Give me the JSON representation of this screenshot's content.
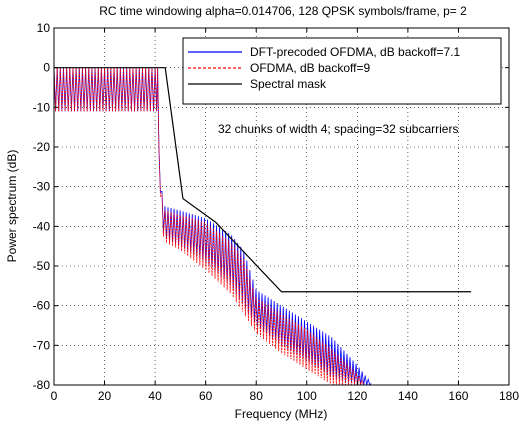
{
  "chart_data": {
    "type": "line",
    "title": "RC time windowing alpha=0.014706,  128 QPSK symbols/frame,  p= 2",
    "xlabel": "Frequency (MHz)",
    "ylabel": "Power spectrum (dB)",
    "xlim": [
      0,
      180
    ],
    "ylim": [
      -80,
      10
    ],
    "xticks": [
      0,
      20,
      40,
      60,
      80,
      100,
      120,
      140,
      160,
      180
    ],
    "yticks": [
      10,
      0,
      -10,
      -20,
      -30,
      -40,
      -50,
      -60,
      -70,
      -80
    ],
    "grid": true,
    "legend_position": "top-right",
    "annotation": "32 chunks of width 4; spacing=32 subcarriers",
    "series": [
      {
        "name": "DFT-precoded OFDMA, dB backoff=7.1",
        "color": "#0000ff",
        "style": "solid",
        "inband": {
          "x_range": [
            0,
            41
          ],
          "top": 0,
          "bottom": -11,
          "period": 1.25
        },
        "envelope": {
          "x": [
            41.5,
            43,
            44,
            50,
            60,
            70,
            75,
            80,
            90,
            100,
            110,
            120,
            126
          ],
          "top": [
            -20,
            -34,
            -35,
            -36,
            -38,
            -42,
            -46,
            -56,
            -60,
            -64,
            -68,
            -75,
            -80
          ],
          "bottom": [
            -25,
            -41,
            -43,
            -45,
            -49,
            -55,
            -60,
            -65,
            -70,
            -74,
            -78,
            -80,
            -80
          ]
        }
      },
      {
        "name": "OFDMA, dB backoff=9",
        "color": "#ff0000",
        "style": "dashed",
        "inband": {
          "x_range": [
            0,
            41
          ],
          "top": 0,
          "bottom": -11,
          "period": 1.25
        },
        "envelope": {
          "x": [
            41.5,
            43,
            44,
            50,
            60,
            70,
            75,
            80,
            90,
            100,
            110,
            120,
            123
          ],
          "top": [
            -20,
            -35,
            -36,
            -37,
            -39,
            -44,
            -48,
            -58,
            -62,
            -66,
            -71,
            -77,
            -80
          ],
          "bottom": [
            -26,
            -42,
            -44,
            -46,
            -51,
            -57,
            -62,
            -67,
            -72,
            -76,
            -80,
            -80,
            -80
          ]
        }
      },
      {
        "name": "Spectral mask",
        "color": "#000000",
        "style": "solid",
        "x": [
          0,
          44,
          51,
          64,
          90,
          165
        ],
        "y": [
          0,
          0,
          -33,
          -39,
          -56.5,
          -56.5
        ]
      }
    ]
  }
}
